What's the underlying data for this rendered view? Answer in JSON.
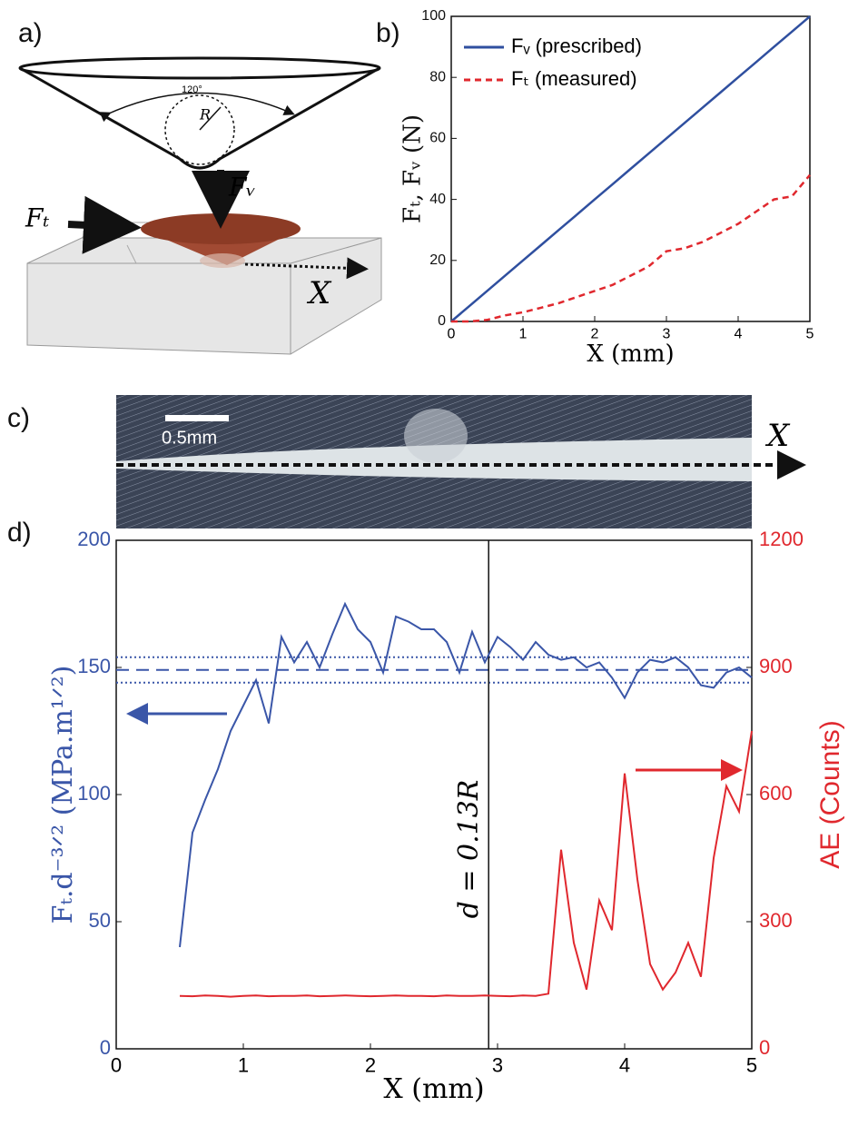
{
  "panel_labels": [
    "a)",
    "b)",
    "c)",
    "d)"
  ],
  "diagram_a": {
    "angle": "120°",
    "radius": "R",
    "vertical_force": "Fᵥ",
    "tangential_force": "Fₜ",
    "direction": "X"
  },
  "image_c": {
    "scale_bar": "0.5mm",
    "direction": "X"
  },
  "chart_data": [
    {
      "type": "line",
      "xlabel": "X (mm)",
      "ylabel": "Fₜ, Fᵥ (N)",
      "x": [
        0,
        0.25,
        0.5,
        0.75,
        1,
        1.25,
        1.5,
        1.75,
        2,
        2.25,
        2.5,
        2.75,
        3,
        3.25,
        3.5,
        3.75,
        4,
        4.25,
        4.5,
        4.75,
        5
      ],
      "series": [
        {
          "name": "Fᵥ (prescribed)",
          "color": "#2f4f9f",
          "dash": false,
          "values": [
            0,
            5,
            10,
            15,
            20,
            25,
            30,
            35,
            40,
            45,
            50,
            55,
            60,
            65,
            70,
            75,
            80,
            85,
            90,
            95,
            100
          ]
        },
        {
          "name": "Fₜ (measured)",
          "color": "#e0282e",
          "dash": true,
          "values": [
            0,
            0,
            0.5,
            2,
            3,
            4.5,
            6,
            8,
            10,
            12,
            15,
            18,
            23,
            24,
            26,
            29,
            32,
            36,
            40,
            41,
            48
          ]
        }
      ],
      "xlim": [
        0,
        5
      ],
      "xticks": [
        0,
        1,
        2,
        3,
        4,
        5
      ],
      "ylim": [
        0,
        100
      ],
      "yticks": [
        0,
        20,
        40,
        60,
        80,
        100
      ],
      "legend": "upper left"
    },
    {
      "type": "line",
      "xlabel": "X (mm)",
      "ylabel": "Fₜ.d⁻³ᐟ² (MPa.m¹ᐟ²)",
      "y2label": "AE (Counts)",
      "x": [
        0.5,
        0.6,
        0.7,
        0.8,
        0.9,
        1.0,
        1.1,
        1.2,
        1.3,
        1.4,
        1.5,
        1.6,
        1.7,
        1.8,
        1.9,
        2.0,
        2.1,
        2.2,
        2.3,
        2.4,
        2.5,
        2.6,
        2.7,
        2.8,
        2.9,
        3.0,
        3.1,
        3.2,
        3.3,
        3.4,
        3.5,
        3.6,
        3.7,
        3.8,
        3.9,
        4.0,
        4.1,
        4.2,
        4.3,
        4.4,
        4.5,
        4.6,
        4.7,
        4.8,
        4.9,
        5.0
      ],
      "series": [
        {
          "color": "#3a56a8",
          "values": [
            40,
            85,
            98,
            110,
            125,
            135,
            145,
            128,
            162,
            152,
            160,
            150,
            163,
            175,
            165,
            160,
            148,
            170,
            168,
            165,
            165,
            160,
            148,
            164,
            152,
            162,
            158,
            153,
            160,
            155,
            153,
            154,
            150,
            152,
            146,
            138,
            148,
            153,
            152,
            154,
            150,
            143,
            142,
            148,
            150,
            146
          ]
        },
        {
          "color": "#e0282e",
          "axis": "y2",
          "values": [
            125,
            124,
            126,
            125,
            123,
            125,
            126,
            124,
            125,
            125,
            126,
            124,
            125,
            126,
            125,
            124,
            125,
            126,
            125,
            125,
            124,
            126,
            125,
            125,
            126,
            125,
            124,
            126,
            125,
            130,
            470,
            250,
            140,
            350,
            280,
            650,
            400,
            200,
            140,
            180,
            250,
            170,
            450,
            620,
            560,
            750
          ]
        }
      ],
      "xlim": [
        0,
        5
      ],
      "xticks": [
        0,
        1,
        2,
        3,
        4,
        5
      ],
      "ylim": [
        0,
        200
      ],
      "yticks": [
        0,
        50,
        100,
        150,
        200
      ],
      "y2lim": [
        0,
        1200
      ],
      "y2ticks": [
        0,
        300,
        600,
        900,
        1200
      ],
      "hlines": [
        {
          "value": 149,
          "style": "dashed"
        },
        {
          "value": 154,
          "style": "dotted"
        },
        {
          "value": 144,
          "style": "dotted"
        }
      ],
      "vline": {
        "x": 2.93,
        "label": "d = 0.13R"
      }
    }
  ]
}
